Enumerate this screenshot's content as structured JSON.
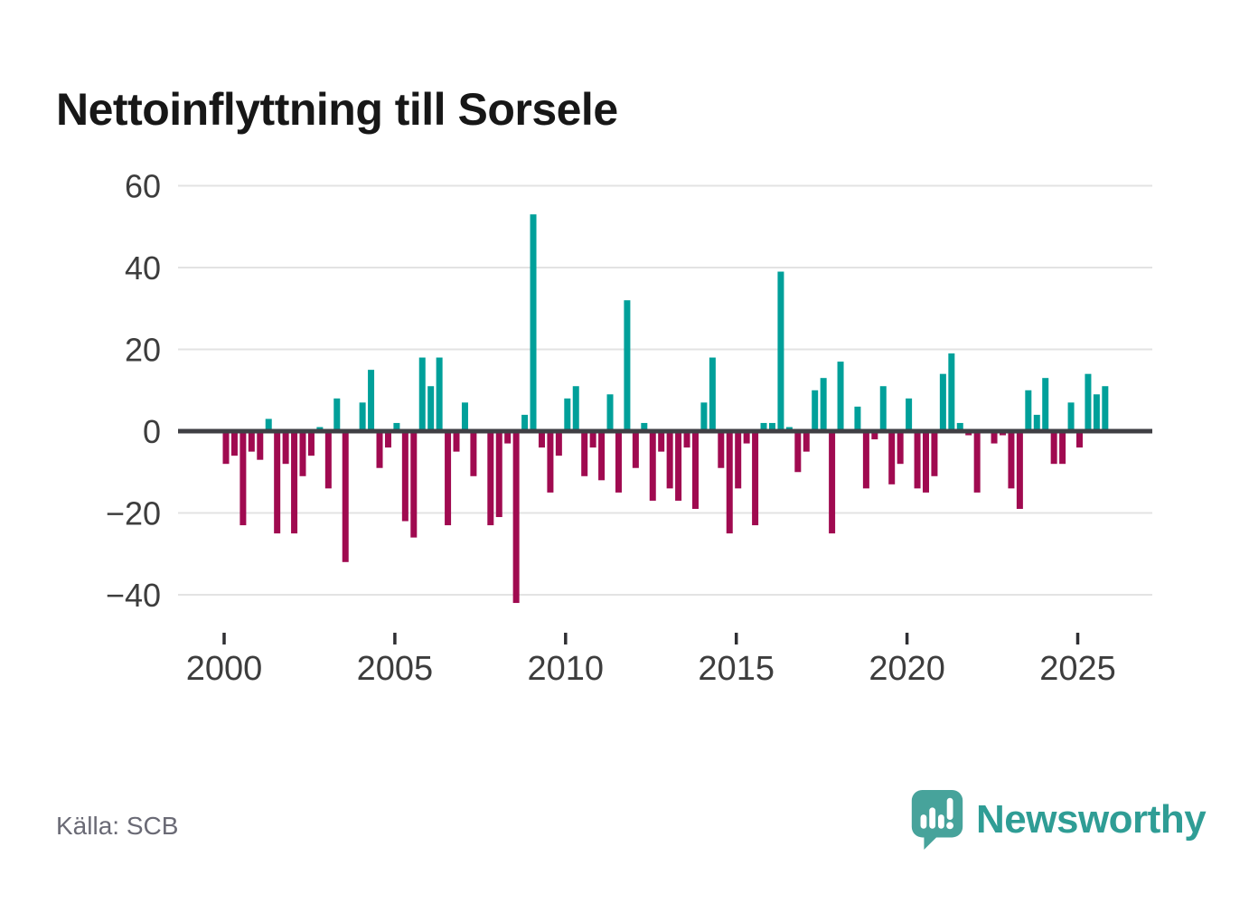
{
  "title": "Nettoinflyttning till Sorsele",
  "source": "Källa: SCB",
  "branding": {
    "wordmark": "Newsworthy"
  },
  "colors": {
    "positive": "#00a09a",
    "negative": "#a00a50",
    "grid": "#e3e3e3",
    "zero_line": "#3f3f44",
    "axis_text": "#3d3d3d",
    "title": "#171717",
    "source_text": "#6a6a75",
    "logo": "#47a39b",
    "wordmark": "#2f9d95",
    "background": "#ffffff"
  },
  "chart_data": {
    "type": "bar",
    "title": "Nettoinflyttning till Sorsele",
    "xlabel": "",
    "ylabel": "",
    "frequency": "quarterly",
    "start_period": "2000Q1",
    "end_period": "2025Q4",
    "x_tick_labels": [
      "2000",
      "2005",
      "2010",
      "2015",
      "2020",
      "2025"
    ],
    "y_ticks": [
      60,
      40,
      20,
      0,
      -20,
      -40
    ],
    "ylim": [
      -45,
      62
    ],
    "grid": true,
    "legend": "none",
    "bar_color_rule": "positive=teal, negative=crimson",
    "values": [
      -8,
      -6,
      -23,
      -5,
      -7,
      3,
      -25,
      -8,
      -25,
      -11,
      -6,
      1,
      -14,
      8,
      -32,
      0,
      7,
      15,
      -9,
      -4,
      2,
      -22,
      -26,
      18,
      11,
      18,
      -23,
      -5,
      7,
      -11,
      0,
      -23,
      -21,
      -3,
      -42,
      4,
      53,
      -4,
      -15,
      -6,
      8,
      11,
      -11,
      -4,
      -12,
      9,
      -15,
      32,
      -9,
      2,
      -17,
      -5,
      -14,
      -17,
      -4,
      -19,
      7,
      18,
      -9,
      -25,
      -14,
      -3,
      -23,
      2,
      2,
      39,
      1,
      -10,
      -5,
      10,
      13,
      -25,
      17,
      0,
      6,
      -14,
      -2,
      11,
      -13,
      -8,
      8,
      -14,
      -15,
      -11,
      14,
      19,
      2,
      -1,
      -15,
      0,
      -3,
      -1,
      -14,
      -19,
      10,
      4,
      13,
      -8,
      -8,
      7,
      -4,
      14,
      9,
      11
    ]
  }
}
